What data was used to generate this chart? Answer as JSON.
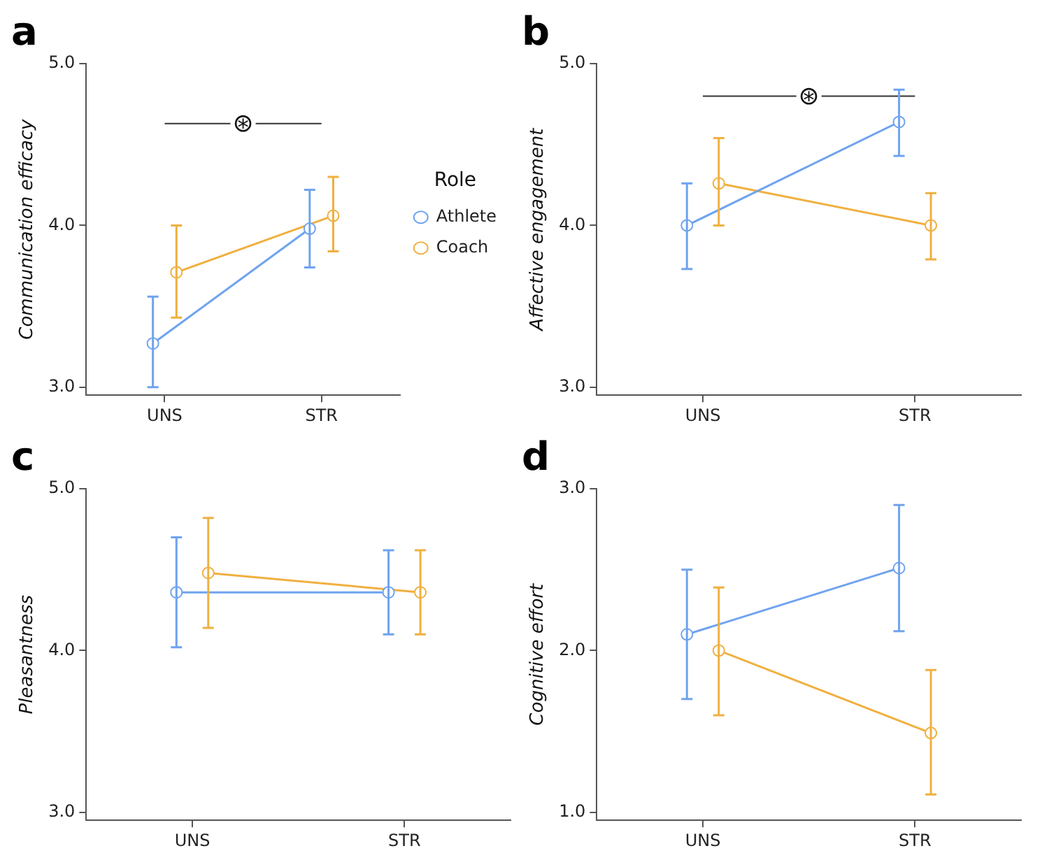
{
  "chart_data": [
    {
      "type": "line",
      "title": "a",
      "categories": [
        "UNS",
        "STR"
      ],
      "ylabel": "Communication efficacy",
      "ylim": [
        2.95,
        5
      ],
      "yticks": [
        {
          "value": 3,
          "label": "3.0"
        },
        {
          "value": 4,
          "label": "4.0"
        },
        {
          "value": 5,
          "label": "5.0"
        }
      ],
      "grid": false,
      "marker": "circle",
      "legend": "right",
      "legend_title": "Role",
      "annotations": [
        {
          "text": "⊛",
          "y": 4.63
        }
      ],
      "series": [
        {
          "name": "Athlete",
          "color": "#6fa3ef",
          "values": [
            3.27,
            3.98
          ],
          "errors": [
            [
              3.0,
              3.56
            ],
            [
              3.74,
              4.22
            ]
          ]
        },
        {
          "name": "Coach",
          "color": "#f0b040",
          "values": [
            3.71,
            4.06
          ],
          "errors": [
            [
              3.43,
              4.0
            ],
            [
              3.84,
              4.3
            ]
          ]
        },
        {
          "color": "#333333",
          "marker": "none",
          "values": [
            4.63,
            4.63
          ]
        }
      ]
    },
    {
      "type": "line",
      "title": "b",
      "categories": [
        "UNS",
        "STR"
      ],
      "ylabel": "Affective engagement",
      "ylim": [
        2.95,
        5
      ],
      "yticks": [
        {
          "value": 3,
          "label": "3.0"
        },
        {
          "value": 4,
          "label": "4.0"
        },
        {
          "value": 5,
          "label": "5.0"
        }
      ],
      "grid": false,
      "marker": "circle",
      "annotations": [
        {
          "text": "⊛",
          "y": 4.8
        }
      ],
      "series": [
        {
          "color": "#6fa3ef",
          "values": [
            4.0,
            4.64
          ],
          "errors": [
            [
              3.73,
              4.26
            ],
            [
              4.43,
              4.84
            ]
          ]
        },
        {
          "color": "#f0b040",
          "values": [
            4.26,
            4.0
          ],
          "errors": [
            [
              4.0,
              4.54
            ],
            [
              3.79,
              4.2
            ]
          ]
        },
        {
          "color": "#333333",
          "marker": "none",
          "values": [
            4.8,
            4.8
          ]
        }
      ]
    },
    {
      "type": "line",
      "title": "c",
      "categories": [
        "UNS",
        "STR"
      ],
      "ylabel": "Pleasantness",
      "ylim": [
        2.95,
        5
      ],
      "yticks": [
        {
          "value": 3,
          "label": "3.0"
        },
        {
          "value": 4,
          "label": "4.0"
        },
        {
          "value": 5,
          "label": "5.0"
        }
      ],
      "grid": false,
      "marker": "circle",
      "series": [
        {
          "color": "#6fa3ef",
          "values": [
            4.36,
            4.36
          ],
          "errors": [
            [
              4.02,
              4.7
            ],
            [
              4.1,
              4.62
            ]
          ]
        },
        {
          "color": "#f0b040",
          "values": [
            4.48,
            4.36
          ],
          "errors": [
            [
              4.14,
              4.82
            ],
            [
              4.1,
              4.62
            ]
          ]
        }
      ]
    },
    {
      "type": "line",
      "title": "d",
      "categories": [
        "UNS",
        "STR"
      ],
      "ylabel": "Cognitive effort",
      "ylim": [
        0.95,
        3
      ],
      "yticks": [
        {
          "value": 1,
          "label": "1.0"
        },
        {
          "value": 2,
          "label": "2.0"
        },
        {
          "value": 3,
          "label": "3.0"
        }
      ],
      "grid": false,
      "marker": "circle",
      "series": [
        {
          "color": "#6fa3ef",
          "values": [
            2.1,
            2.51
          ],
          "errors": [
            [
              1.7,
              2.5
            ],
            [
              2.12,
              2.9
            ]
          ]
        },
        {
          "color": "#f0b040",
          "values": [
            2.0,
            1.49
          ],
          "errors": [
            [
              1.6,
              2.39
            ],
            [
              1.11,
              1.88
            ]
          ]
        }
      ]
    }
  ]
}
